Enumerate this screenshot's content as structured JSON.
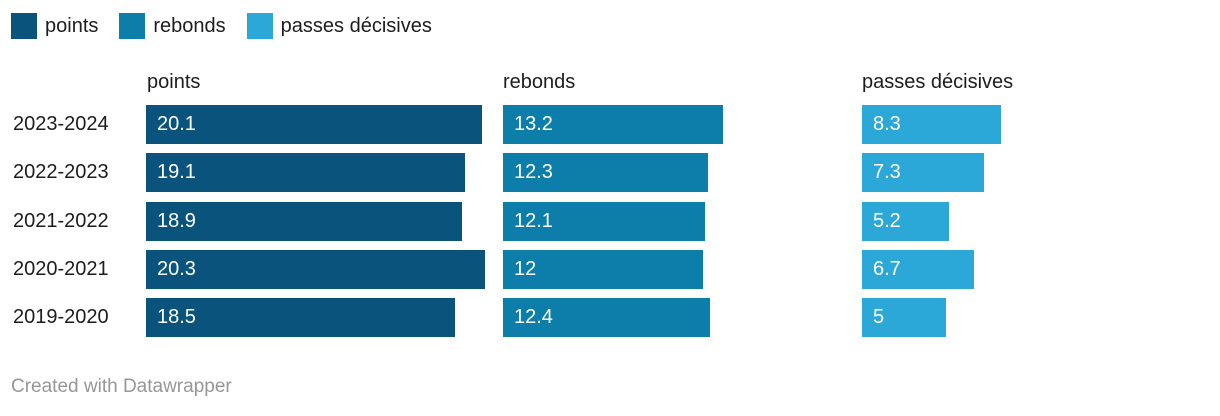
{
  "legend": {
    "items": [
      {
        "label": "points",
        "color": "#0a537d"
      },
      {
        "label": "rebonds",
        "color": "#0d7da9"
      },
      {
        "label": "passes décisives",
        "color": "#2ba7d8"
      }
    ]
  },
  "chart_data": {
    "type": "bar",
    "orientation": "horizontal",
    "categories": [
      "2023-2024",
      "2022-2023",
      "2021-2022",
      "2020-2021",
      "2019-2020"
    ],
    "series": [
      {
        "name": "points",
        "color": "#0a537d",
        "values": [
          20.1,
          19.1,
          18.9,
          20.3,
          18.5
        ]
      },
      {
        "name": "rebonds",
        "color": "#0d7da9",
        "values": [
          13.2,
          12.3,
          12.1,
          12,
          12.4
        ]
      },
      {
        "name": "passes décisives",
        "color": "#2ba7d8",
        "values": [
          8.3,
          7.3,
          5.2,
          6.7,
          5
        ]
      }
    ],
    "column_headers": [
      "points",
      "rebonds",
      "passes décisives"
    ],
    "value_labels": "inside-start",
    "xlim": [
      0,
      20.3
    ],
    "grid": false,
    "legend_position": "top"
  },
  "footer": {
    "credit": "Created with Datawrapper"
  }
}
